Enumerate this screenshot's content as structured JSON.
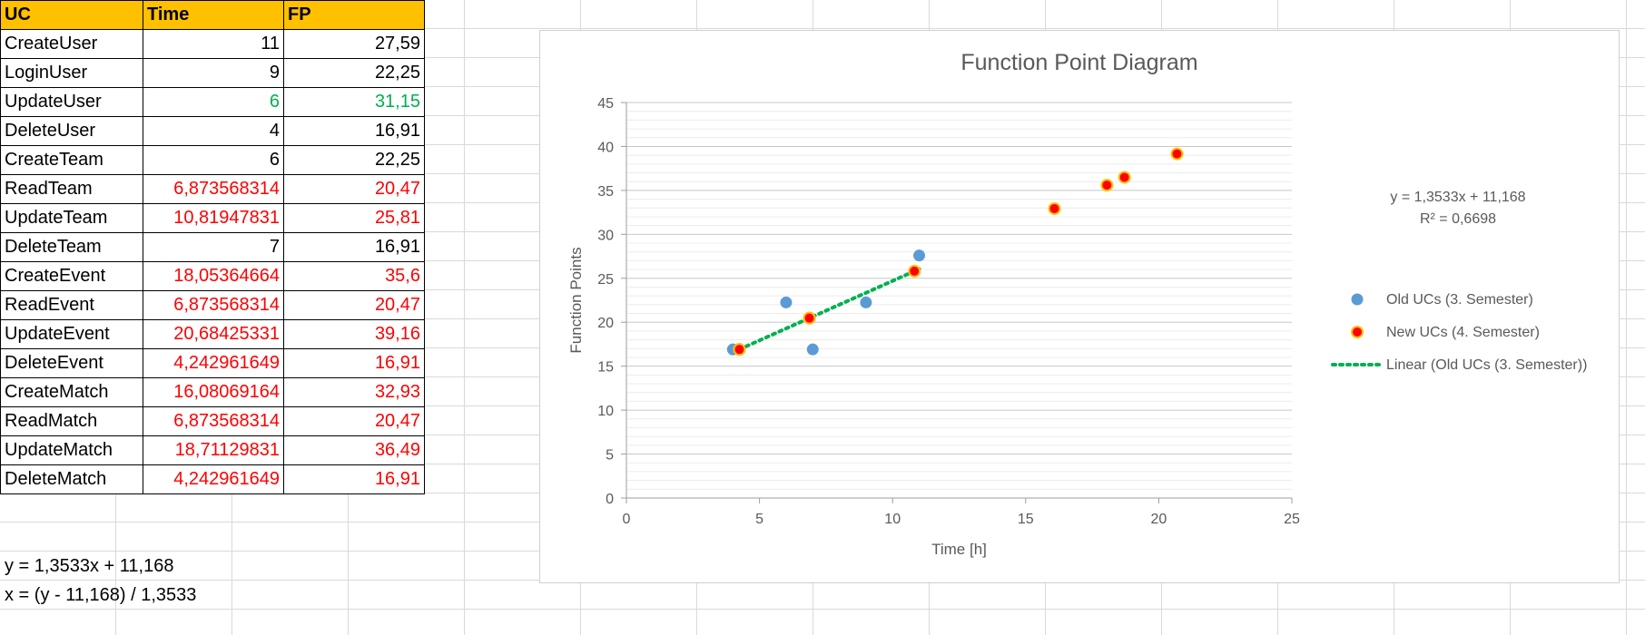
{
  "sheet": {
    "headers": [
      "UC",
      "Time",
      "FP"
    ],
    "rows": [
      {
        "uc": "CreateUser",
        "time": "11",
        "fp": "27,59",
        "color": "black"
      },
      {
        "uc": "LoginUser",
        "time": "9",
        "fp": "22,25",
        "color": "black"
      },
      {
        "uc": "UpdateUser",
        "time": "6",
        "fp": "31,15",
        "color": "green"
      },
      {
        "uc": "DeleteUser",
        "time": "4",
        "fp": "16,91",
        "color": "black"
      },
      {
        "uc": "CreateTeam",
        "time": "6",
        "fp": "22,25",
        "color": "black"
      },
      {
        "uc": "ReadTeam",
        "time": "6,873568314",
        "fp": "20,47",
        "color": "red"
      },
      {
        "uc": "UpdateTeam",
        "time": "10,81947831",
        "fp": "25,81",
        "color": "red"
      },
      {
        "uc": "DeleteTeam",
        "time": "7",
        "fp": "16,91",
        "color": "black"
      },
      {
        "uc": "CreateEvent",
        "time": "18,05364664",
        "fp": "35,6",
        "color": "red"
      },
      {
        "uc": "ReadEvent",
        "time": "6,873568314",
        "fp": "20,47",
        "color": "red"
      },
      {
        "uc": "UpdateEvent",
        "time": "20,68425331",
        "fp": "39,16",
        "color": "red"
      },
      {
        "uc": "DeleteEvent",
        "time": "4,242961649",
        "fp": "16,91",
        "color": "red"
      },
      {
        "uc": "CreateMatch",
        "time": "16,08069164",
        "fp": "32,93",
        "color": "red"
      },
      {
        "uc": "ReadMatch",
        "time": "6,873568314",
        "fp": "20,47",
        "color": "red"
      },
      {
        "uc": "UpdateMatch",
        "time": "18,71129831",
        "fp": "36,49",
        "color": "red"
      },
      {
        "uc": "DeleteMatch",
        "time": "4,242961649",
        "fp": "16,91",
        "color": "red"
      }
    ],
    "formula1": "y = 1,3533x + 11,168",
    "formula2": "x = (y - 11,168) / 1,3533"
  },
  "colors": {
    "header_bg": "#ffc000",
    "old_series": "#5b9bd5",
    "new_series_fill": "#ff0000",
    "new_series_edge": "#ffc000",
    "trend": "#00b050"
  },
  "chart_data": {
    "type": "scatter",
    "title": "Function Point Diagram",
    "xlabel": "Time [h]",
    "ylabel": "Function Points",
    "xlim": [
      0,
      25
    ],
    "ylim": [
      0,
      45
    ],
    "xticks": [
      0,
      5,
      10,
      15,
      20,
      25
    ],
    "yticks": [
      0,
      5,
      10,
      15,
      20,
      25,
      30,
      35,
      40,
      45
    ],
    "grid": true,
    "legend_position": "right",
    "series": [
      {
        "name": "Old UCs (3. Semester)",
        "points": [
          [
            11,
            27.59
          ],
          [
            9,
            22.25
          ],
          [
            6,
            22.25
          ],
          [
            4,
            16.91
          ],
          [
            7,
            16.91
          ]
        ]
      },
      {
        "name": "New UCs (4. Semester)",
        "points": [
          [
            6.873568314,
            20.47
          ],
          [
            10.81947831,
            25.81
          ],
          [
            18.05364664,
            35.6
          ],
          [
            6.873568314,
            20.47
          ],
          [
            20.68425331,
            39.16
          ],
          [
            4.242961649,
            16.91
          ],
          [
            16.08069164,
            32.93
          ],
          [
            6.873568314,
            20.47
          ],
          [
            18.71129831,
            36.49
          ],
          [
            4.242961649,
            16.91
          ]
        ]
      }
    ],
    "trendline": {
      "name": "Linear (Old UCs (3. Semester))",
      "slope": 1.3533,
      "intercept": 11.168,
      "x_range": [
        4,
        11
      ]
    },
    "annotation": {
      "equation": "y = 1,3533x + 11,168",
      "r2": "R² = 0,6698"
    }
  }
}
